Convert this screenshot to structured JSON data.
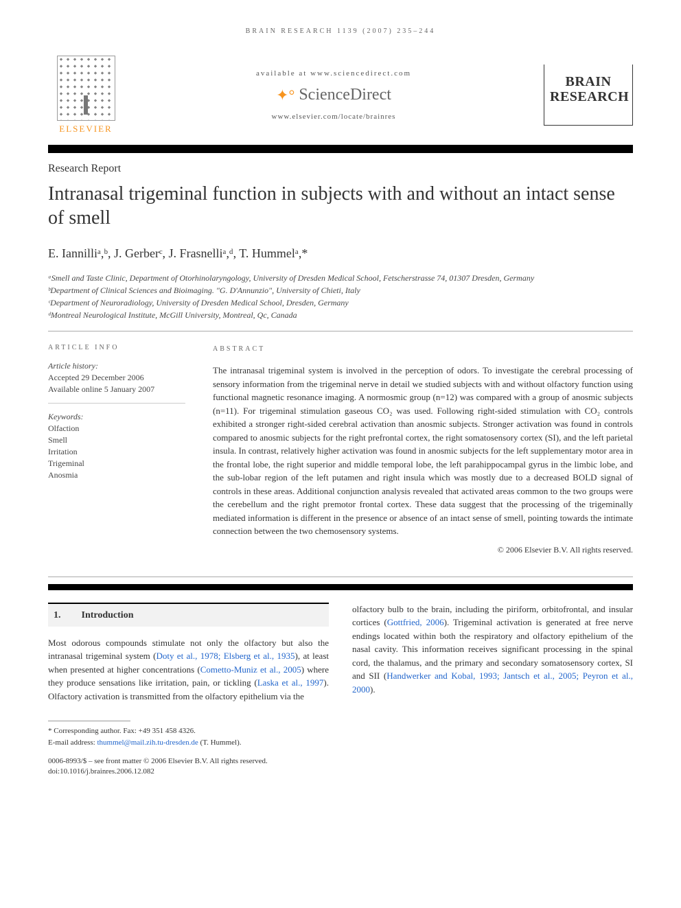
{
  "running_head": "BRAIN RESEARCH 1139 (2007) 235–244",
  "header": {
    "available": "available at www.sciencedirect.com",
    "sd_brand": "ScienceDirect",
    "locate": "www.elsevier.com/locate/brainres",
    "publisher": "ELSEVIER",
    "journal_line1": "BRAIN",
    "journal_line2": "RESEARCH"
  },
  "article_type": "Research Report",
  "title": "Intranasal trigeminal function in subjects with and without an intact sense of smell",
  "authors_html": "E. Iannilliᵃ,ᵇ, J. Gerberᶜ, J. Frasnelliᵃ,ᵈ, T. Hummelᵃ,*",
  "affiliations": {
    "a": "ᵃSmell and Taste Clinic, Department of Otorhinolaryngology, University of Dresden Medical School, Fetscherstrasse 74, 01307 Dresden, Germany",
    "b": "ᵇDepartment of Clinical Sciences and Bioimaging. \"G. D'Annunzio\", University of Chieti, Italy",
    "c": "ᶜDepartment of Neuroradiology, University of Dresden Medical School, Dresden, Germany",
    "d": "ᵈMontreal Neurological Institute, McGill University, Montreal, Qc, Canada"
  },
  "info": {
    "head": "ARTICLE INFO",
    "history_label": "Article history:",
    "accepted": "Accepted 29 December 2006",
    "online": "Available online 5 January 2007",
    "keywords_label": "Keywords:",
    "keywords": [
      "Olfaction",
      "Smell",
      "Irritation",
      "Trigeminal",
      "Anosmia"
    ]
  },
  "abstract": {
    "head": "ABSTRACT",
    "text": "The intranasal trigeminal system is involved in the perception of odors. To investigate the cerebral processing of sensory information from the trigeminal nerve in detail we studied subjects with and without olfactory function using functional magnetic resonance imaging. A normosmic group (n=12) was compared with a group of anosmic subjects (n=11). For trigeminal stimulation gaseous CO₂ was used. Following right-sided stimulation with CO₂ controls exhibited a stronger right-sided cerebral activation than anosmic subjects. Stronger activation was found in controls compared to anosmic subjects for the right prefrontal cortex, the right somatosensory cortex (SI), and the left parietal insula. In contrast, relatively higher activation was found in anosmic subjects for the left supplementary motor area in the frontal lobe, the right superior and middle temporal lobe, the left parahippocampal gyrus in the limbic lobe, and the sub-lobar region of the left putamen and right insula which was mostly due to a decreased BOLD signal of controls in these areas. Additional conjunction analysis revealed that activated areas common to the two groups were the cerebellum and the right premotor frontal cortex. These data suggest that the processing of the trigeminally mediated information is different in the presence or absence of an intact sense of smell, pointing towards the intimate connection between the two chemosensory systems.",
    "copyright": "© 2006 Elsevier B.V. All rights reserved."
  },
  "section1": {
    "num": "1.",
    "title": "Introduction",
    "col1_pre": "Most odorous compounds stimulate not only the olfactory but also the intranasal trigeminal system (",
    "cite1": "Doty et al., 1978; Elsberg et al., 1935",
    "col1_mid1": "), at least when presented at higher concentrations (",
    "cite2": "Cometto-Muniz et al., 2005",
    "col1_mid2": ") where they produce sensations like irritation, pain, or tickling (",
    "cite3": "Laska et al., 1997",
    "col1_post": "). Olfactory activation is transmitted from the olfactory epithelium via the",
    "col2_pre": "olfactory bulb to the brain, including the piriform, orbitofrontal, and insular cortices (",
    "cite4": "Gottfried, 2006",
    "col2_mid": "). Trigeminal activation is generated at free nerve endings located within both the respiratory and olfactory epithelium of the nasal cavity. This information receives significant processing in the spinal cord, the thalamus, and the primary and secondary somatosensory cortex, SI and SII (",
    "cite5": "Handwerker and Kobal, 1993; Jantsch et al., 2005; Peyron et al., 2000",
    "col2_post": ")."
  },
  "footnotes": {
    "corr": "* Corresponding author. Fax: +49 351 458 4326.",
    "email_label": "E-mail address: ",
    "email": "thummel@mail.zih.tu-dresden.de",
    "email_suffix": " (T. Hummel)."
  },
  "footer": {
    "line1": "0006-8993/$ – see front matter © 2006 Elsevier B.V. All rights reserved.",
    "line2": "doi:10.1016/j.brainres.2006.12.082"
  },
  "colors": {
    "orange": "#f7941e",
    "link": "#2266cc",
    "text": "#333333",
    "muted": "#666666"
  }
}
